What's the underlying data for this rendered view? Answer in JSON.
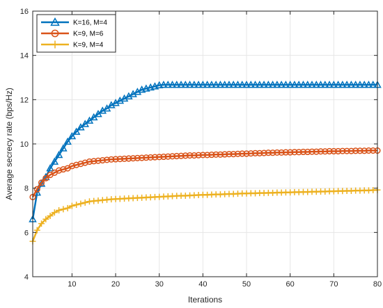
{
  "chart_data": {
    "type": "line",
    "xlabel": "Iterations",
    "ylabel": "Average secrecy rate (bps/Hz)",
    "xlim": [
      1,
      80
    ],
    "ylim": [
      4,
      16
    ],
    "xticks": [
      10,
      20,
      30,
      40,
      50,
      60,
      70,
      80
    ],
    "yticks": [
      4,
      6,
      8,
      10,
      12,
      14,
      16
    ],
    "grid": true,
    "legend_position": "top-left",
    "series": [
      {
        "name": "K=16, M=4",
        "color": "#0072BD",
        "marker": "triangle",
        "values": [
          6.6,
          7.8,
          8.2,
          8.5,
          8.9,
          9.2,
          9.5,
          9.8,
          10.1,
          10.35,
          10.55,
          10.75,
          10.9,
          11.05,
          11.2,
          11.35,
          11.5,
          11.6,
          11.75,
          11.85,
          11.95,
          12.05,
          12.15,
          12.25,
          12.35,
          12.45,
          12.5,
          12.55,
          12.6,
          12.65,
          12.67,
          12.67,
          12.67,
          12.67,
          12.67,
          12.67,
          12.67,
          12.67,
          12.67,
          12.67,
          12.67,
          12.67,
          12.67,
          12.67,
          12.67,
          12.67,
          12.67,
          12.67,
          12.67,
          12.67,
          12.67,
          12.67,
          12.67,
          12.67,
          12.67,
          12.67,
          12.67,
          12.67,
          12.67,
          12.67,
          12.67,
          12.67,
          12.67,
          12.67,
          12.67,
          12.67,
          12.67,
          12.67,
          12.67,
          12.67,
          12.67,
          12.67,
          12.67,
          12.67,
          12.67,
          12.67,
          12.67,
          12.67,
          12.67,
          12.67
        ]
      },
      {
        "name": "K=9, M=6",
        "color": "#D95319",
        "marker": "circle",
        "values": [
          7.6,
          7.95,
          8.25,
          8.45,
          8.6,
          8.7,
          8.8,
          8.85,
          8.9,
          9.0,
          9.05,
          9.1,
          9.15,
          9.2,
          9.22,
          9.24,
          9.26,
          9.28,
          9.3,
          9.31,
          9.32,
          9.33,
          9.34,
          9.35,
          9.36,
          9.37,
          9.38,
          9.39,
          9.4,
          9.41,
          9.42,
          9.43,
          9.44,
          9.45,
          9.46,
          9.47,
          9.48,
          9.48,
          9.49,
          9.5,
          9.5,
          9.51,
          9.52,
          9.52,
          9.53,
          9.54,
          9.54,
          9.55,
          9.56,
          9.56,
          9.57,
          9.58,
          9.58,
          9.59,
          9.6,
          9.6,
          9.61,
          9.61,
          9.62,
          9.62,
          9.63,
          9.63,
          9.64,
          9.64,
          9.65,
          9.65,
          9.66,
          9.66,
          9.67,
          9.67,
          9.67,
          9.68,
          9.68,
          9.68,
          9.69,
          9.69,
          9.69,
          9.7,
          9.7,
          9.7
        ]
      },
      {
        "name": "K=9, M=4",
        "color": "#EDB120",
        "marker": "plus",
        "values": [
          5.6,
          6.1,
          6.4,
          6.6,
          6.75,
          6.9,
          7.0,
          7.05,
          7.1,
          7.2,
          7.25,
          7.3,
          7.35,
          7.4,
          7.42,
          7.44,
          7.46,
          7.48,
          7.5,
          7.51,
          7.52,
          7.53,
          7.54,
          7.55,
          7.56,
          7.57,
          7.58,
          7.59,
          7.6,
          7.61,
          7.62,
          7.63,
          7.64,
          7.65,
          7.66,
          7.66,
          7.67,
          7.68,
          7.69,
          7.7,
          7.7,
          7.71,
          7.72,
          7.72,
          7.73,
          7.74,
          7.74,
          7.75,
          7.76,
          7.76,
          7.77,
          7.77,
          7.78,
          7.78,
          7.79,
          7.79,
          7.8,
          7.8,
          7.81,
          7.81,
          7.82,
          7.82,
          7.83,
          7.83,
          7.84,
          7.84,
          7.85,
          7.85,
          7.86,
          7.86,
          7.87,
          7.87,
          7.88,
          7.88,
          7.89,
          7.89,
          7.9,
          7.9,
          7.91,
          7.92
        ]
      }
    ]
  }
}
